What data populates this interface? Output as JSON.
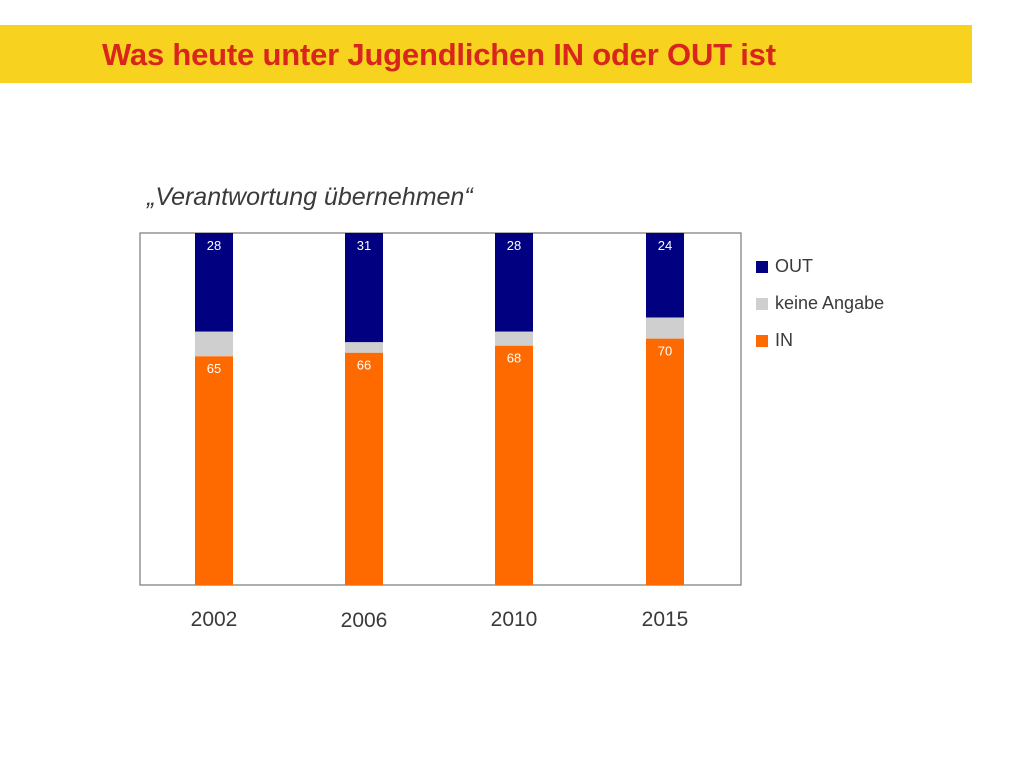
{
  "banner": {
    "title": "Was heute unter Jugendlichen IN oder OUT ist",
    "background": "#f7d320",
    "title_color": "#d9261c"
  },
  "chart_data": {
    "type": "bar",
    "stacked": true,
    "title": "„Verantwortung übernehmen“",
    "categories": [
      "2002",
      "2006",
      "2010",
      "2015"
    ],
    "series": [
      {
        "name": "IN",
        "values": [
          65,
          66,
          68,
          70
        ],
        "color": "#ff6a00",
        "label_color": "#ffffff"
      },
      {
        "name": "keine Angabe",
        "values": [
          7,
          3,
          4,
          6
        ],
        "color": "#cfcfcf",
        "label_color": "#ffffff"
      },
      {
        "name": "OUT",
        "values": [
          28,
          31,
          28,
          24
        ],
        "color": "#000080",
        "label_color": "#ffffff"
      }
    ],
    "labeled_series": [
      "IN",
      "OUT"
    ],
    "legend_order": [
      "OUT",
      "keine Angabe",
      "IN"
    ],
    "legend_position": "right",
    "ylim": [
      0,
      100
    ],
    "grid": false,
    "xlabel": "",
    "ylabel": ""
  }
}
